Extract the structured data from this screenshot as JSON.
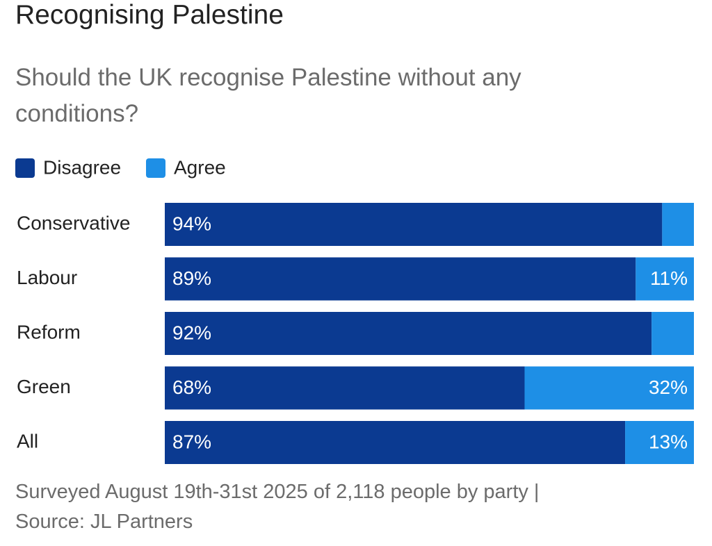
{
  "chart_data": {
    "type": "stacked-bar-horizontal",
    "title": "Recognising Palestine",
    "subtitle": "Should the UK recognise Palestine without any conditions?",
    "categories": [
      "Conservative",
      "Labour",
      "Reform",
      "Green",
      "All"
    ],
    "series": [
      {
        "name": "Disagree",
        "color": "#0b3a91",
        "values": [
          94,
          89,
          92,
          68,
          87
        ],
        "value_labels": [
          "94%",
          "89%",
          "92%",
          "68%",
          "87%"
        ]
      },
      {
        "name": "Agree",
        "color": "#1e8fe6",
        "values": [
          6,
          11,
          8,
          32,
          13
        ],
        "value_labels": [
          null,
          "11%",
          null,
          "32%",
          "13%"
        ]
      }
    ],
    "xlim": [
      0,
      100
    ],
    "notes": [
      "Surveyed August 19th-31st 2025 of 2,118 people by party |",
      "Source: JL Partners"
    ]
  }
}
